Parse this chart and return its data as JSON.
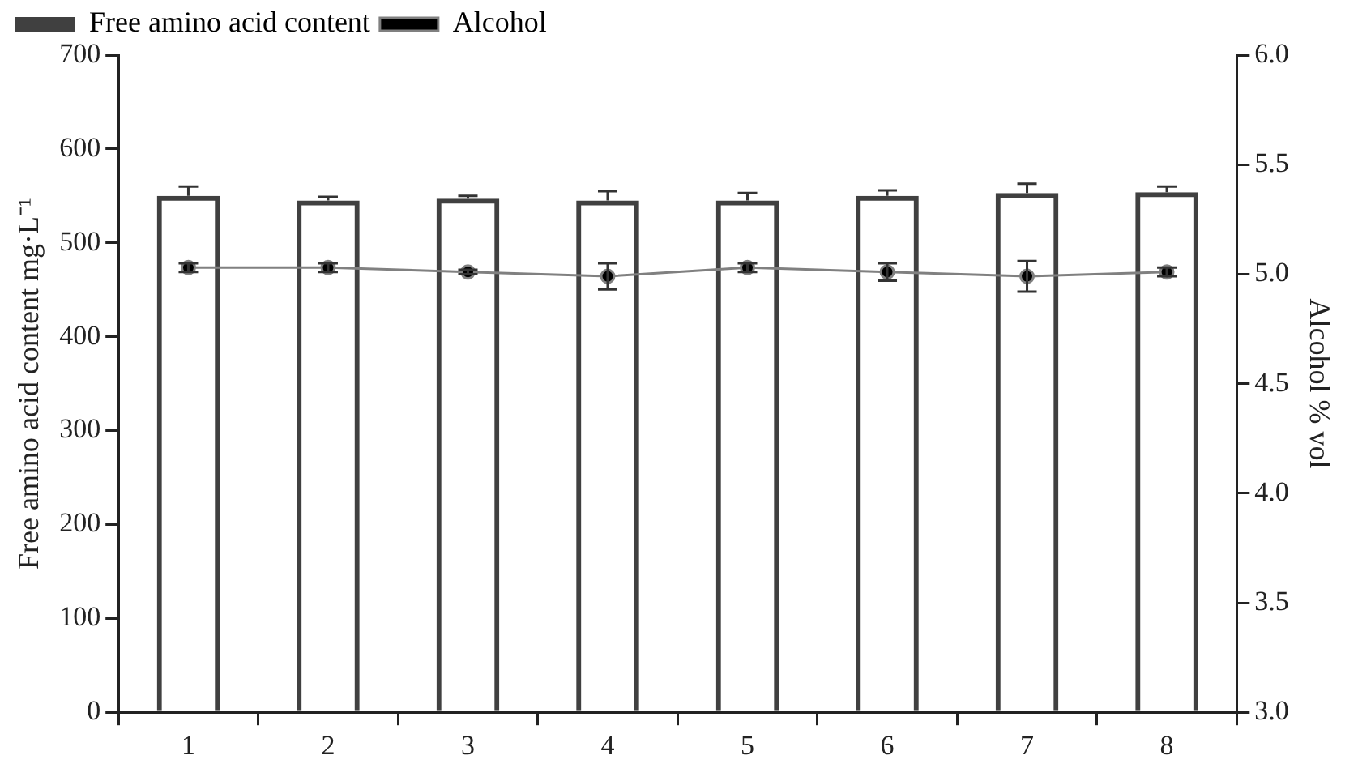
{
  "chart_data": {
    "type": "bar",
    "ylabel": "Free amino acid content mg·L⁻¹",
    "y2label": "Alcohol % vol",
    "categories": [
      "1",
      "2",
      "3",
      "4",
      "5",
      "6",
      "7",
      "8"
    ],
    "series": [
      {
        "name": "Free amino acid content",
        "color": "#404040",
        "values": [
          550,
          545,
          547,
          545,
          545,
          550,
          553,
          554
        ],
        "errors": [
          10,
          4,
          3,
          10,
          8,
          6,
          10,
          6
        ]
      },
      {
        "name": "Alcohol",
        "type": "line",
        "axis": "y2",
        "color": "#808080",
        "marker": "circle",
        "values": [
          5.03,
          5.03,
          5.01,
          4.99,
          5.03,
          5.01,
          4.99,
          5.01
        ],
        "errors": [
          0.02,
          0.02,
          0.01,
          0.06,
          0.02,
          0.04,
          0.07,
          0.02
        ]
      }
    ],
    "ylim": [
      0,
      700
    ],
    "yticks": [
      0,
      100,
      200,
      300,
      400,
      500,
      600,
      700
    ],
    "y2lim": [
      3.0,
      6.0
    ],
    "y2ticks": [
      {
        "value": 3,
        "label": "3.0"
      },
      3.5,
      {
        "value": 4,
        "label": "4.0"
      },
      4.5,
      {
        "value": 5,
        "label": "5.0"
      },
      5.5,
      {
        "value": 6,
        "label": "6.0"
      }
    ],
    "grid": false,
    "legend": "top left"
  }
}
